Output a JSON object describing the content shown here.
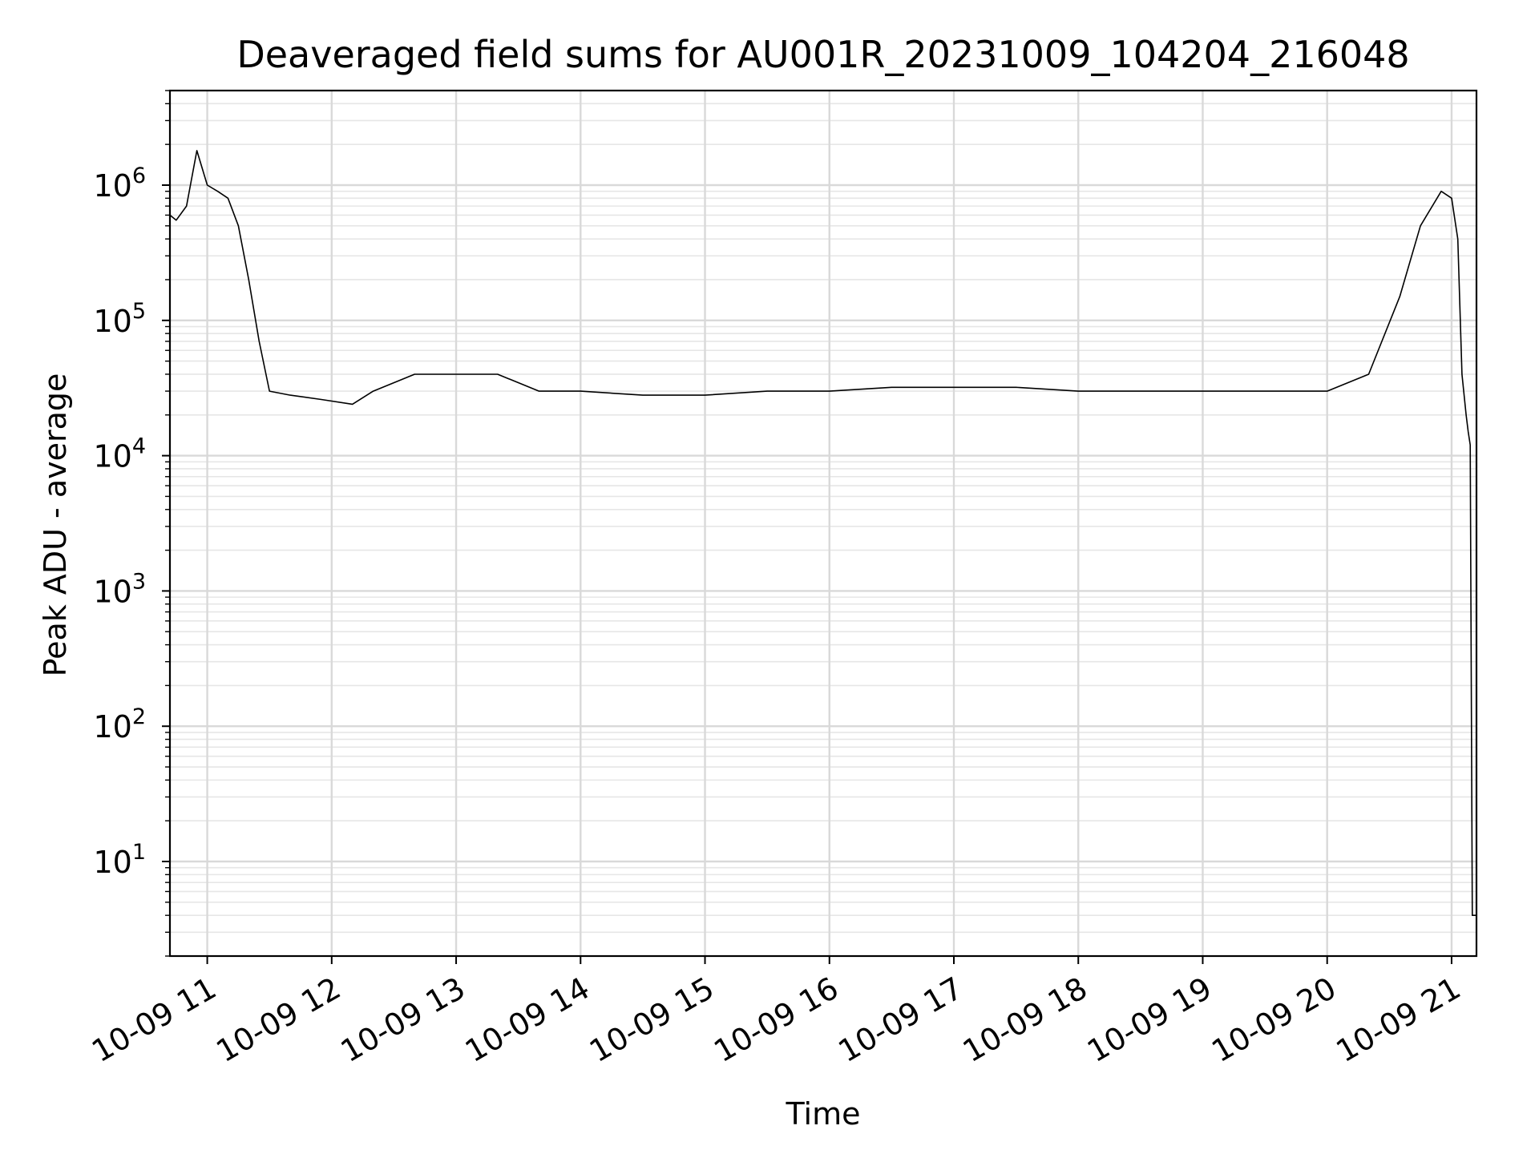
{
  "chart_data": {
    "type": "line",
    "title": "Deaveraged field sums for AU001R_20231009_104204_216048",
    "xlabel": "Time",
    "ylabel": "Peak ADU - average",
    "yscale": "log",
    "grid": true,
    "xlim": [
      "2023-10-09 10:42",
      "2023-10-09 21:12"
    ],
    "ylim": [
      2,
      5000000
    ],
    "x_tick_labels": [
      "10-09 11",
      "10-09 12",
      "10-09 13",
      "10-09 14",
      "10-09 15",
      "10-09 16",
      "10-09 17",
      "10-09 18",
      "10-09 19",
      "10-09 20",
      "10-09 21"
    ],
    "y_tick_labels": [
      {
        "base": "10",
        "exp": "1"
      },
      {
        "base": "10",
        "exp": "2"
      },
      {
        "base": "10",
        "exp": "3"
      },
      {
        "base": "10",
        "exp": "4"
      },
      {
        "base": "10",
        "exp": "5"
      },
      {
        "base": "10",
        "exp": "6"
      }
    ],
    "series": [
      {
        "color": "#000000",
        "x": [
          "2023-10-09 10:42",
          "2023-10-09 10:45",
          "2023-10-09 10:50",
          "2023-10-09 10:55",
          "2023-10-09 11:00",
          "2023-10-09 11:05",
          "2023-10-09 11:10",
          "2023-10-09 11:15",
          "2023-10-09 11:20",
          "2023-10-09 11:25",
          "2023-10-09 11:30",
          "2023-10-09 11:40",
          "2023-10-09 11:55",
          "2023-10-09 12:10",
          "2023-10-09 12:20",
          "2023-10-09 12:40",
          "2023-10-09 13:00",
          "2023-10-09 13:20",
          "2023-10-09 13:40",
          "2023-10-09 14:00",
          "2023-10-09 14:30",
          "2023-10-09 15:00",
          "2023-10-09 15:30",
          "2023-10-09 16:00",
          "2023-10-09 16:30",
          "2023-10-09 17:00",
          "2023-10-09 17:30",
          "2023-10-09 18:00",
          "2023-10-09 18:30",
          "2023-10-09 19:00",
          "2023-10-09 19:30",
          "2023-10-09 20:00",
          "2023-10-09 20:20",
          "2023-10-09 20:35",
          "2023-10-09 20:45",
          "2023-10-09 20:55",
          "2023-10-09 21:00",
          "2023-10-09 21:03",
          "2023-10-09 21:05",
          "2023-10-09 21:07",
          "2023-10-09 21:08",
          "2023-10-09 21:09",
          "2023-10-09 21:10",
          "2023-10-09 21:12"
        ],
        "y": [
          600000,
          550000,
          700000,
          1800000,
          1000000,
          900000,
          800000,
          500000,
          200000,
          70000,
          30000,
          28000,
          26000,
          24000,
          30000,
          40000,
          40000,
          40000,
          30000,
          30000,
          28000,
          28000,
          30000,
          30000,
          32000,
          32000,
          32000,
          30000,
          30000,
          30000,
          30000,
          30000,
          40000,
          150000,
          500000,
          900000,
          800000,
          400000,
          40000,
          20000,
          15000,
          12000,
          4,
          4
        ]
      }
    ]
  }
}
